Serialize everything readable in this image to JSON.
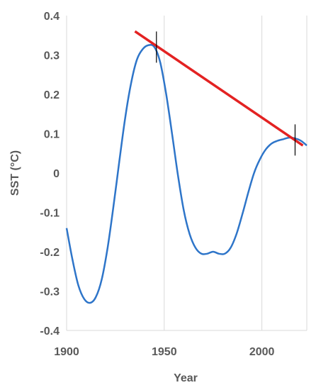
{
  "chart_data": {
    "type": "line",
    "title": "",
    "xlabel": "Year",
    "ylabel": "SST (°C)",
    "xlim": [
      1900,
      2023
    ],
    "ylim": [
      -0.4,
      0.4
    ],
    "x_ticks": [
      1900,
      1950,
      2000
    ],
    "y_ticks": [
      -0.4,
      -0.3,
      -0.2,
      -0.1,
      0,
      0.1,
      0.2,
      0.3,
      0.4
    ],
    "y_tick_labels": [
      "-0.4",
      "-0.3",
      "-0.2",
      "-0.1",
      "0",
      "0.1",
      "0.2",
      "0.3",
      "0.4"
    ],
    "grid": "vertical",
    "series": [
      {
        "color": "#2e75c9",
        "x": [
          1900,
          1903,
          1906,
          1909,
          1912,
          1915,
          1918,
          1921,
          1924,
          1927,
          1930,
          1933,
          1936,
          1939,
          1942,
          1945,
          1948,
          1951,
          1954,
          1957,
          1960,
          1963,
          1966,
          1969,
          1972,
          1975,
          1978,
          1981,
          1984,
          1987,
          1990,
          1993,
          1996,
          1999,
          2002,
          2005,
          2008,
          2011,
          2014,
          2017,
          2020,
          2023
        ],
        "y": [
          -0.14,
          -0.22,
          -0.285,
          -0.32,
          -0.33,
          -0.315,
          -0.27,
          -0.19,
          -0.085,
          0.03,
          0.14,
          0.228,
          0.288,
          0.315,
          0.325,
          0.32,
          0.28,
          0.2,
          0.1,
          -0.005,
          -0.095,
          -0.155,
          -0.19,
          -0.205,
          -0.205,
          -0.2,
          -0.205,
          -0.205,
          -0.19,
          -0.155,
          -0.105,
          -0.05,
          0.0,
          0.035,
          0.06,
          0.075,
          0.082,
          0.086,
          0.09,
          0.088,
          0.082,
          0.07
        ]
      }
    ],
    "trend_line": {
      "color": "#e32222",
      "x": [
        1935,
        2021
      ],
      "y": [
        0.36,
        0.07
      ]
    },
    "markers": [
      {
        "x": 1946,
        "y": 0.32
      },
      {
        "x": 2017,
        "y": 0.084
      }
    ]
  }
}
